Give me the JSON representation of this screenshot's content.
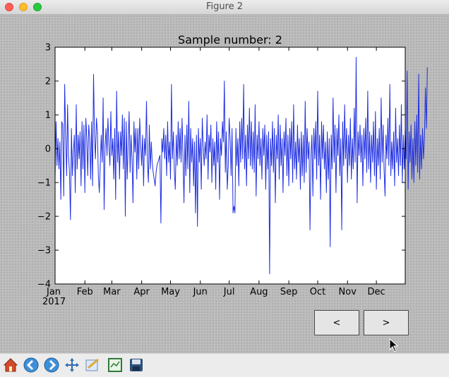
{
  "window": {
    "title": "Figure 2"
  },
  "chart_data": {
    "type": "line",
    "title": "Sample number: 2",
    "xlabel": "",
    "ylabel": "",
    "ylim": [
      -4,
      3
    ],
    "yticks": [
      -4,
      -3,
      -2,
      -1,
      0,
      1,
      2,
      3
    ],
    "xlim": [
      "2017-01-01",
      "2017-12-31"
    ],
    "xtick_labels": [
      "Jan",
      "Feb",
      "Mar",
      "Apr",
      "May",
      "Jun",
      "Jul",
      "Aug",
      "Sep",
      "Oct",
      "Nov",
      "Dec"
    ],
    "xtick_sublabel": "2017",
    "line_color": "#1f2fe0",
    "series": [
      {
        "x_start": "2017-01-01",
        "x_step_days": 1,
        "values": [
          -0.9,
          0.8,
          -0.5,
          0.3,
          -0.6,
          0.2,
          -1.5,
          0.8,
          0.7,
          -1.4,
          1.9,
          0.4,
          -0.8,
          1.3,
          -0.2,
          -0.7,
          -2.1,
          0.6,
          -0.8,
          -0.1,
          0.4,
          -1.3,
          1.3,
          -0.6,
          0.4,
          -0.3,
          0.5,
          -1.1,
          0.8,
          -0.6,
          0.7,
          -1.3,
          0.9,
          0.3,
          -0.8,
          0.7,
          0.3,
          -0.9,
          0.8,
          -1.1,
          2.2,
          0.4,
          -0.3,
          0.9,
          0.5,
          -0.8,
          -1.3,
          -0.5,
          0.4,
          -0.4,
          1.5,
          -1.8,
          0.1,
          0.6,
          -0.2,
          0.9,
          0.1,
          -0.5,
          1.1,
          -0.2,
          0.3,
          -0.9,
          0.6,
          -1.5,
          1.7,
          -0.4,
          0.5,
          -0.9,
          0.5,
          -0.2,
          1.0,
          -0.6,
          0.9,
          -2.0,
          0.8,
          -0.9,
          0.2,
          1.1,
          -0.7,
          0.4,
          -0.3,
          -1.6,
          0.8,
          -0.1,
          0.6,
          -0.9,
          0.6,
          -0.6,
          0.9,
          0.1,
          -0.5,
          0.4,
          -1.1,
          0.3,
          -0.2,
          1.4,
          -0.4,
          -1.0,
          0.7,
          -0.6,
          0.2,
          -0.4,
          -0.7,
          -0.9,
          -1.1,
          -0.7,
          -0.5,
          -0.4,
          -0.3,
          -0.2,
          -2.2,
          0.3,
          -0.1,
          0.6,
          -0.3,
          0.4,
          -0.8,
          0.8,
          -0.4,
          0.2,
          -0.9,
          1.9,
          -0.3,
          0.5,
          -0.7,
          -1.2,
          0.4,
          -0.5,
          0.8,
          -0.3,
          0.6,
          -0.4,
          0.9,
          -0.2,
          -1.6,
          0.4,
          -0.8,
          0.7,
          -0.6,
          1.4,
          -1.3,
          0.6,
          -0.4,
          0.3,
          -1.1,
          0.2,
          -1.9,
          0.4,
          -2.3,
          0.6,
          -0.4,
          0.3,
          -1.2,
          0.9,
          0.1,
          -0.5,
          0.2,
          -0.3,
          1.0,
          -0.9,
          0.4,
          -0.1,
          0.7,
          -1.0,
          0.3,
          -0.5,
          0.2,
          -1.2,
          0.8,
          -0.4,
          0.5,
          -1.5,
          0.3,
          -0.2,
          0.8,
          0.2,
          2.0,
          -0.7,
          0.5,
          -1.2,
          -0.5,
          0.9,
          0.3,
          -0.8,
          0.6,
          -1.9,
          -1.7,
          -1.9,
          0.6,
          -0.5,
          0.3,
          -1.1,
          0.8,
          -0.4,
          0.9,
          -0.3,
          1.9,
          -0.6,
          0.4,
          -1.1,
          0.7,
          -0.3,
          1.2,
          -0.5,
          0.8,
          -0.6,
          0.5,
          -0.7,
          1.3,
          -1.4,
          0.4,
          -0.3,
          0.8,
          -0.5,
          0.3,
          -0.9,
          0.6,
          -0.2,
          0.7,
          -1.2,
          0.4,
          -0.6,
          0.5,
          -3.7,
          0.3,
          -0.5,
          0.8,
          -0.7,
          0.6,
          -1.6,
          0.4,
          -0.3,
          1.0,
          -0.9,
          0.7,
          -0.5,
          0.3,
          -1.3,
          0.5,
          -0.2,
          0.9,
          -0.8,
          0.4,
          -1.1,
          0.6,
          -0.3,
          0.8,
          -1.0,
          1.3,
          -0.6,
          0.2,
          -0.9,
          0.7,
          -0.4,
          0.3,
          -1.2,
          0.5,
          -0.8,
          0.4,
          -1.0,
          1.4,
          -0.7,
          0.6,
          -0.3,
          0.2,
          -2.4,
          -0.2,
          0.4,
          -1.4,
          0.6,
          -0.3,
          0.8,
          -0.9,
          1.7,
          -0.5,
          0.4,
          -1.5,
          0.8,
          -0.3,
          0.7,
          -0.6,
          0.2,
          -1.3,
          0.5,
          -0.9,
          0.3,
          -2.9,
          0.4,
          -0.6,
          1.5,
          -0.4,
          0.7,
          -1.3,
          0.6,
          -0.2,
          1.0,
          -0.8,
          0.3,
          -2.4,
          0.8,
          -0.5,
          1.3,
          -0.3,
          0.6,
          -1.0,
          0.4,
          -0.5,
          0.9,
          -0.9,
          0.3,
          -0.6,
          1.2,
          -0.4,
          2.7,
          -1.6,
          0.5,
          -0.2,
          0.7,
          -0.4,
          0.4,
          -1.1,
          0.6,
          -0.3,
          0.9,
          -0.7,
          1.7,
          -0.6,
          0.5,
          -1.0,
          0.4,
          -0.4,
          0.8,
          -0.8,
          1.1,
          -1.2,
          0.3,
          -0.5,
          0.6,
          -0.9,
          1.5,
          -0.4,
          0.7,
          -0.6,
          -1.4,
          0.4,
          -0.3,
          0.9,
          -0.5,
          1.9,
          -0.8,
          0.2,
          -0.6,
          0.5,
          -1.1,
          1.2,
          -0.4,
          0.3,
          -0.8,
          0.7,
          -0.5,
          1.3,
          -1.0,
          0.4,
          -0.6,
          0.6,
          -0.3,
          2.3,
          -1.2,
          0.5,
          -0.4,
          0.7,
          -0.9,
          0.3,
          -1.0,
          0.8,
          -0.5,
          1.0,
          -0.7,
          2.2,
          -0.9,
          0.4,
          -0.6,
          0.6,
          -0.3,
          0.4,
          1.8,
          0.6,
          2.4
        ]
      }
    ]
  },
  "buttons": {
    "prev_label": "<",
    "next_label": ">"
  },
  "toolbar": {
    "items": [
      "home-icon",
      "back-icon",
      "forward-icon",
      "pan-icon",
      "zoom-rect-icon",
      "configure-subplots-icon",
      "save-icon"
    ]
  }
}
